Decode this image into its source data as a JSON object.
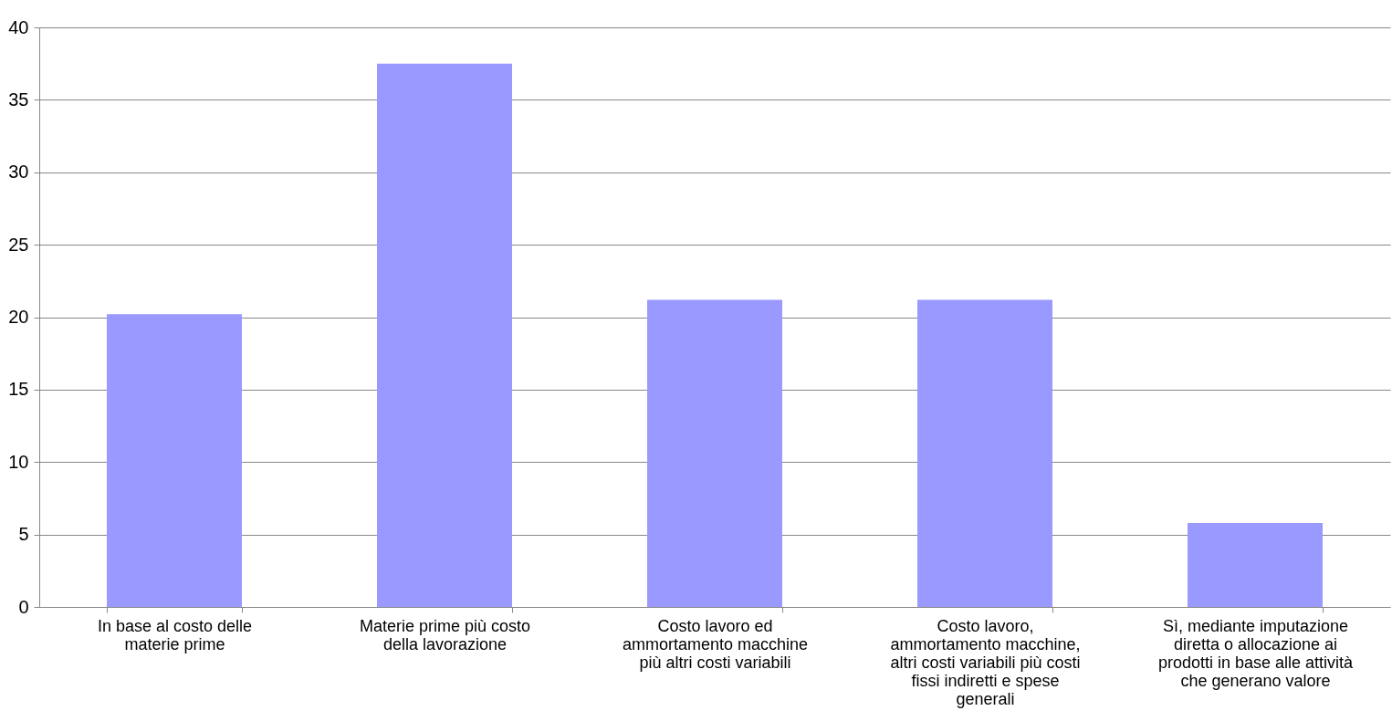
{
  "chart_data": {
    "type": "bar",
    "categories": [
      "In base al costo delle materie prime",
      "Materie prime più costo della lavorazione",
      "Costo lavoro ed ammortamento macchine più altri costi variabili",
      "Costo lavoro, ammortamento macchine, altri costi variabili più costi fissi indiretti e spese generali",
      "Sì, mediante imputazione diretta  o allocazione ai prodotti in base alle attività che generano valore"
    ],
    "values": [
      20.2,
      37.5,
      21.2,
      21.2,
      5.8
    ],
    "color": "#9999ff",
    "ylim": [
      0,
      40
    ],
    "yticks": [
      0,
      5,
      10,
      15,
      20,
      25,
      30,
      35,
      40
    ],
    "grid": "y"
  }
}
